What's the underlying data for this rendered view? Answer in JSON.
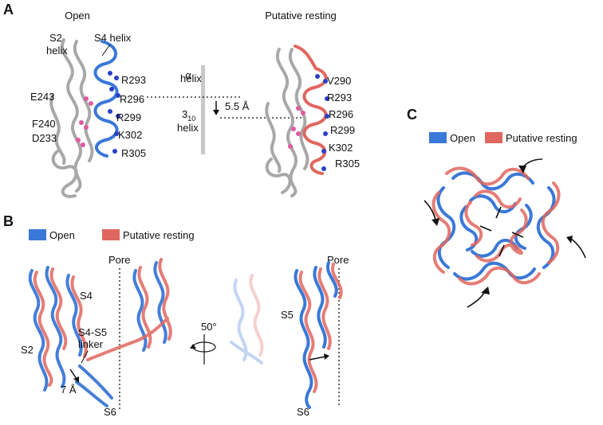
{
  "panel_a": {
    "letter": "A",
    "open_title": "Open",
    "resting_title": "Putative resting",
    "s2_label_line1": "S2",
    "s2_label_line2": "helix",
    "s4_label": "S4 helix",
    "open_residues": [
      "R293",
      "R296",
      "R299",
      "K302",
      "R305"
    ],
    "left_residues": [
      "E243",
      "F240",
      "D233"
    ],
    "resting_residues": [
      "V290",
      "R293",
      "R296",
      "R299",
      "K302",
      "R305"
    ],
    "alpha_line1": "α",
    "alpha_line2": "helix",
    "three10_main": "3",
    "three10_sub": "10",
    "three10_line2": "helix",
    "shift_label": "5.5 Å"
  },
  "panel_b": {
    "letter": "B",
    "legend_open": "Open",
    "legend_resting": "Putative resting",
    "pore_left": "Pore",
    "pore_right": "Pore",
    "s4": "S4",
    "s2": "S2",
    "s4s5_line1": "S4-S5",
    "s4s5_line2": "linker",
    "seven_a": "7 Å",
    "s6_left": "S6",
    "rotation": "50°",
    "s5": "S5",
    "s6_right": "S6"
  },
  "panel_c": {
    "letter": "C",
    "legend_open": "Open",
    "legend_resting": "Putative resting"
  },
  "colors": {
    "open": "#3a78d8",
    "resting": "#e0675f",
    "s2_gray": "#a8a8a8",
    "residue_blue": "#2a3fc8",
    "residue_pink": "#e05aa0",
    "divider_gray": "#c8c8c8"
  }
}
